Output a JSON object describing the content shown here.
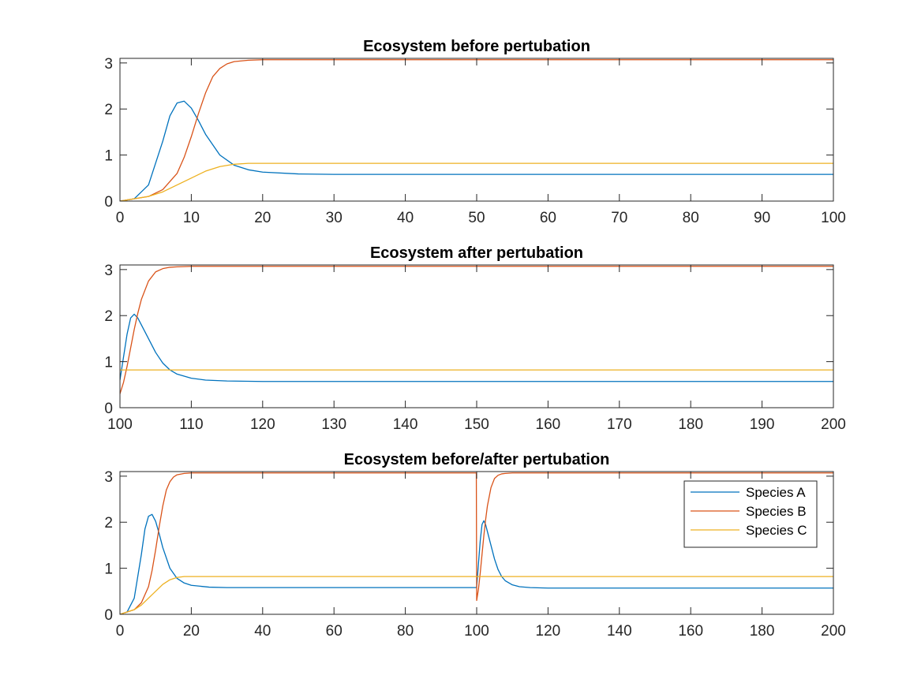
{
  "chart_data": [
    {
      "type": "line",
      "title": "Ecosystem before pertubation",
      "xlim": [
        0,
        100
      ],
      "ylim": [
        0,
        3.1
      ],
      "xticks": [
        0,
        10,
        20,
        30,
        40,
        50,
        60,
        70,
        80,
        90,
        100
      ],
      "yticks": [
        0,
        1,
        2,
        3
      ],
      "grid": false,
      "series": [
        {
          "color": "#0072BD",
          "x": [
            0,
            2,
            4,
            6,
            7,
            8,
            9,
            10,
            11,
            12,
            14,
            16,
            18,
            20,
            25,
            30,
            40,
            100
          ],
          "y": [
            0,
            0.05,
            0.35,
            1.3,
            1.85,
            2.13,
            2.17,
            2.02,
            1.75,
            1.45,
            1.0,
            0.78,
            0.68,
            0.63,
            0.59,
            0.58,
            0.58,
            0.58
          ]
        },
        {
          "color": "#D95319",
          "x": [
            0,
            4,
            6,
            8,
            9,
            10,
            11,
            12,
            13,
            14,
            15,
            16,
            18,
            20,
            25,
            100
          ],
          "y": [
            0,
            0.1,
            0.25,
            0.6,
            0.95,
            1.4,
            1.9,
            2.35,
            2.7,
            2.88,
            2.98,
            3.03,
            3.06,
            3.07,
            3.07,
            3.07
          ]
        },
        {
          "color": "#EDB120",
          "x": [
            0,
            4,
            6,
            8,
            10,
            12,
            14,
            16,
            18,
            20,
            25,
            100
          ],
          "y": [
            0,
            0.1,
            0.2,
            0.35,
            0.5,
            0.65,
            0.75,
            0.8,
            0.82,
            0.82,
            0.82,
            0.82
          ]
        }
      ]
    },
    {
      "type": "line",
      "title": "Ecosystem after pertubation",
      "xlim": [
        100,
        200
      ],
      "ylim": [
        0,
        3.1
      ],
      "xticks": [
        100,
        110,
        120,
        130,
        140,
        150,
        160,
        170,
        180,
        190,
        200
      ],
      "yticks": [
        0,
        1,
        2,
        3
      ],
      "grid": false,
      "series": [
        {
          "color": "#0072BD",
          "x": [
            100,
            100.5,
            101,
            101.5,
            102,
            102.5,
            103,
            104,
            105,
            106,
            107,
            108,
            110,
            112,
            115,
            120,
            130,
            200
          ],
          "y": [
            0.6,
            1.1,
            1.6,
            1.95,
            2.03,
            1.95,
            1.8,
            1.5,
            1.2,
            0.97,
            0.82,
            0.73,
            0.64,
            0.6,
            0.58,
            0.57,
            0.57,
            0.57
          ]
        },
        {
          "color": "#D95319",
          "x": [
            100,
            100.5,
            101,
            101.5,
            102,
            102.5,
            103,
            104,
            105,
            106,
            107,
            108,
            110,
            115,
            200
          ],
          "y": [
            0.3,
            0.55,
            0.9,
            1.3,
            1.7,
            2.05,
            2.35,
            2.75,
            2.95,
            3.02,
            3.05,
            3.06,
            3.07,
            3.07,
            3.07
          ]
        },
        {
          "color": "#EDB120",
          "x": [
            100,
            101,
            200
          ],
          "y": [
            0.82,
            0.82,
            0.82
          ]
        }
      ]
    },
    {
      "type": "line",
      "title": "Ecosystem before/after pertubation",
      "xlim": [
        0,
        200
      ],
      "ylim": [
        0,
        3.1
      ],
      "xticks": [
        0,
        20,
        40,
        60,
        80,
        100,
        120,
        140,
        160,
        180,
        200
      ],
      "yticks": [
        0,
        1,
        2,
        3
      ],
      "grid": false,
      "legend": "top-right",
      "series": [
        {
          "name": "Species A",
          "color": "#0072BD",
          "x": [
            0,
            2,
            4,
            6,
            7,
            8,
            9,
            10,
            11,
            12,
            14,
            16,
            18,
            20,
            25,
            30,
            40,
            99.9,
            100,
            100.5,
            101,
            101.5,
            102,
            102.5,
            103,
            104,
            105,
            106,
            107,
            108,
            110,
            112,
            115,
            120,
            130,
            200
          ],
          "y": [
            0,
            0.05,
            0.35,
            1.3,
            1.85,
            2.13,
            2.17,
            2.02,
            1.75,
            1.45,
            1.0,
            0.78,
            0.68,
            0.63,
            0.59,
            0.58,
            0.58,
            0.58,
            0.6,
            1.1,
            1.6,
            1.95,
            2.03,
            1.95,
            1.8,
            1.5,
            1.2,
            0.97,
            0.82,
            0.73,
            0.64,
            0.6,
            0.58,
            0.57,
            0.57,
            0.57
          ]
        },
        {
          "name": "Species B",
          "color": "#D95319",
          "x": [
            0,
            4,
            6,
            8,
            9,
            10,
            11,
            12,
            13,
            14,
            15,
            16,
            18,
            20,
            25,
            99.9,
            100,
            100.5,
            101,
            101.5,
            102,
            102.5,
            103,
            104,
            105,
            106,
            107,
            108,
            110,
            115,
            200
          ],
          "y": [
            0,
            0.1,
            0.25,
            0.6,
            0.95,
            1.4,
            1.9,
            2.35,
            2.7,
            2.88,
            2.98,
            3.03,
            3.06,
            3.07,
            3.07,
            3.07,
            0.3,
            0.55,
            0.9,
            1.3,
            1.7,
            2.05,
            2.35,
            2.75,
            2.95,
            3.02,
            3.05,
            3.06,
            3.07,
            3.07,
            3.07
          ]
        },
        {
          "name": "Species C",
          "color": "#EDB120",
          "x": [
            0,
            4,
            6,
            8,
            10,
            12,
            14,
            16,
            18,
            20,
            25,
            200
          ],
          "y": [
            0,
            0.1,
            0.2,
            0.35,
            0.5,
            0.65,
            0.75,
            0.8,
            0.82,
            0.82,
            0.82,
            0.82
          ]
        }
      ]
    }
  ]
}
